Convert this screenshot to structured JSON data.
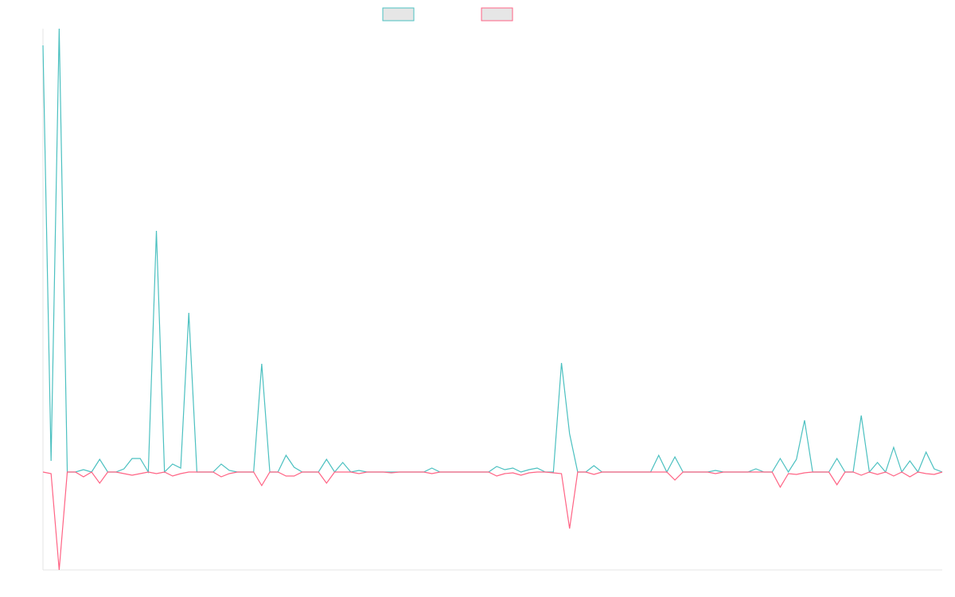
{
  "chart_data": {
    "type": "line",
    "categories": [
      null,
      null,
      null,
      null,
      null,
      null,
      null,
      null,
      null,
      null,
      null,
      null,
      null,
      null,
      null,
      null,
      null,
      null,
      null,
      null,
      null,
      null,
      null,
      null,
      null,
      null,
      null,
      null,
      null,
      null,
      null,
      null,
      null,
      null,
      null,
      null,
      null,
      null,
      null,
      null,
      null,
      null,
      null,
      null,
      null,
      null,
      null,
      null,
      null,
      null,
      null,
      null,
      null,
      null,
      null,
      null,
      null,
      null,
      null,
      null,
      null,
      null,
      null,
      null,
      null,
      null,
      null,
      null,
      null,
      null,
      null,
      null,
      null,
      null,
      null,
      null,
      null,
      null,
      null,
      null,
      null,
      null,
      null,
      null,
      null,
      null,
      null,
      null,
      null,
      null,
      null,
      null,
      null,
      null,
      null,
      null,
      null,
      null,
      null,
      null,
      null,
      null,
      null,
      null,
      null,
      null,
      null,
      null,
      null,
      null,
      null,
      null
    ],
    "series": [
      {
        "color": "#4bc0c0",
        "values": [
          536,
          14,
          557,
          0,
          0,
          3,
          0,
          16,
          0,
          0,
          4,
          17,
          17,
          0,
          303,
          0,
          10,
          5,
          200,
          0,
          0,
          0,
          10,
          2,
          0,
          0,
          0,
          136,
          0,
          0,
          21,
          6,
          0,
          0,
          0,
          16,
          0,
          12,
          0,
          2,
          0,
          0,
          0,
          0,
          0,
          0,
          0,
          0,
          5,
          0,
          0,
          0,
          0,
          0,
          0,
          0,
          7,
          3,
          5,
          0,
          3,
          5,
          0,
          0,
          137,
          48,
          0,
          0,
          8,
          0,
          0,
          0,
          0,
          0,
          0,
          0,
          21,
          0,
          19,
          0,
          0,
          0,
          0,
          2,
          0,
          0,
          0,
          0,
          4,
          0,
          0,
          17,
          0,
          16,
          65,
          0,
          0,
          0,
          17,
          0,
          0,
          71,
          0,
          12,
          0,
          31,
          0,
          14,
          0,
          25,
          4,
          0
        ]
      },
      {
        "color": "#ff6384",
        "values": [
          0,
          -2,
          -123,
          0,
          0,
          -6,
          0,
          -14,
          0,
          0,
          -2,
          -4,
          -2,
          0,
          -2,
          0,
          -5,
          -2,
          0,
          0,
          0,
          0,
          -6,
          -2,
          0,
          0,
          0,
          -17,
          0,
          0,
          -5,
          -5,
          0,
          0,
          0,
          -14,
          0,
          0,
          0,
          -2,
          0,
          0,
          0,
          -1,
          0,
          0,
          0,
          0,
          -2,
          0,
          0,
          0,
          0,
          0,
          0,
          0,
          -5,
          -2,
          -1,
          -4,
          -1,
          0,
          0,
          -1,
          -2,
          -71,
          0,
          0,
          -3,
          0,
          0,
          0,
          0,
          0,
          0,
          0,
          0,
          0,
          -10,
          0,
          0,
          0,
          0,
          -2,
          0,
          0,
          0,
          0,
          0,
          0,
          0,
          -19,
          -2,
          -3,
          -1,
          0,
          0,
          0,
          -16,
          0,
          0,
          -4,
          0,
          -3,
          0,
          -5,
          0,
          -6,
          0,
          -2,
          -3,
          0
        ]
      }
    ],
    "ylim": [
      -123,
      557
    ]
  }
}
